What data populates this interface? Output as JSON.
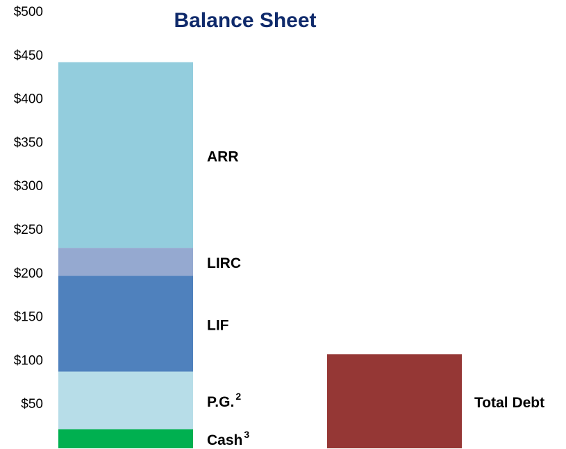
{
  "chart_data": {
    "type": "stacked_bar",
    "title": "Balance Sheet",
    "categories": [
      null,
      null
    ],
    "series": [
      {
        "name": "Cash",
        "footnote": "3",
        "color": "#00b050",
        "values": [
          22,
          null
        ]
      },
      {
        "name": "P.G.",
        "footnote": "2",
        "color": "#b7dde8",
        "values": [
          66,
          null
        ]
      },
      {
        "name": "LIF",
        "color": "#4f81bd",
        "values": [
          110,
          null
        ]
      },
      {
        "name": "LIRC",
        "color": "#95a9d0",
        "values": [
          32,
          null
        ]
      },
      {
        "name": "ARR",
        "color": "#93cddd",
        "values": [
          213,
          null
        ]
      },
      {
        "name": "Total Debt",
        "color": "#953735",
        "values": [
          null,
          108
        ]
      }
    ],
    "ylim": [
      0,
      500
    ],
    "yticks": [
      {
        "value": 50,
        "label": "$50"
      },
      {
        "value": 100,
        "label": "$100"
      },
      {
        "value": 150,
        "label": "$150"
      },
      {
        "value": 200,
        "label": "$200"
      },
      {
        "value": 250,
        "label": "$250"
      },
      {
        "value": 300,
        "label": "$300"
      },
      {
        "value": 350,
        "label": "$350"
      },
      {
        "value": 400,
        "label": "$400"
      },
      {
        "value": 450,
        "label": "$450"
      },
      {
        "value": 500,
        "label": "$500"
      }
    ],
    "grid": false
  }
}
